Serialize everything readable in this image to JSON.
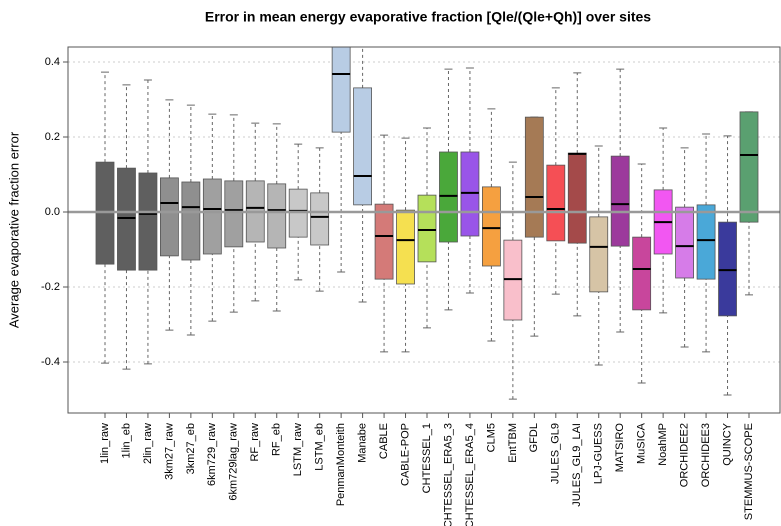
{
  "chart_data": {
    "type": "box",
    "title": "Error in mean energy evaporative fraction [Qle/(Qle+Qh)] over sites",
    "y_label": "Average evaporative fraction error",
    "categories": [
      "1lin_raw",
      "1lin_eb",
      "2lin_raw",
      "3km27_raw",
      "3km27_eb",
      "6km729_raw",
      "6km729lag_raw",
      "RF_raw",
      "RF_eb",
      "LSTM_raw",
      "LSTM_eb",
      "PenmanMonteith",
      "Manabe",
      "CABLE",
      "CABLE-POP",
      "CHTESSEL_1",
      "CHTESSEL_ERA5_3",
      "CHTESSEL_ERA5_4",
      "CLM5",
      "EntTBM",
      "GFDL",
      "JULES_GL9",
      "JULES_GL9_LAI",
      "LPJ-GUESS",
      "MATSIRO",
      "MuSICA",
      "NoahMP",
      "ORCHIDEE2",
      "ORCHIDEE3",
      "QUINCY",
      "STEMMUS-SCOPE"
    ],
    "boxes": [
      {
        "low": -0.403,
        "q1": -0.139,
        "median": 0.0,
        "q3": 0.133,
        "high": 0.373,
        "color": "#5f5f5f"
      },
      {
        "low": -0.419,
        "q1": -0.155,
        "median": -0.016,
        "q3": 0.117,
        "high": 0.339,
        "color": "#5f5f5f"
      },
      {
        "low": -0.405,
        "q1": -0.155,
        "median": -0.005,
        "q3": 0.104,
        "high": 0.352,
        "color": "#5f5f5f"
      },
      {
        "low": -0.315,
        "q1": -0.117,
        "median": 0.024,
        "q3": 0.091,
        "high": 0.299,
        "color": "#8f8f8f"
      },
      {
        "low": -0.328,
        "q1": -0.128,
        "median": 0.013,
        "q3": 0.08,
        "high": 0.285,
        "color": "#8f8f8f"
      },
      {
        "low": -0.291,
        "q1": -0.112,
        "median": 0.008,
        "q3": 0.088,
        "high": 0.261,
        "color": "#a0a0a0"
      },
      {
        "low": -0.267,
        "q1": -0.093,
        "median": 0.005,
        "q3": 0.083,
        "high": 0.259,
        "color": "#a0a0a0"
      },
      {
        "low": -0.237,
        "q1": -0.08,
        "median": 0.011,
        "q3": 0.083,
        "high": 0.237,
        "color": "#b5b5b5"
      },
      {
        "low": -0.264,
        "q1": -0.096,
        "median": 0.005,
        "q3": 0.075,
        "high": 0.235,
        "color": "#b5b5b5"
      },
      {
        "low": -0.181,
        "q1": -0.067,
        "median": 0.003,
        "q3": 0.061,
        "high": 0.181,
        "color": "#c8c8c8"
      },
      {
        "low": -0.211,
        "q1": -0.088,
        "median": -0.013,
        "q3": 0.051,
        "high": 0.171,
        "color": "#c8c8c8"
      },
      {
        "low": -0.16,
        "q1": 0.213,
        "median": 0.368,
        "q3": 0.46,
        "high": 0.55,
        "color": "#b8cce4"
      },
      {
        "low": -0.24,
        "q1": 0.019,
        "median": 0.096,
        "q3": 0.331,
        "high": 0.5,
        "color": "#b8cce4"
      },
      {
        "low": -0.373,
        "q1": -0.179,
        "median": -0.064,
        "q3": 0.021,
        "high": 0.205,
        "color": "#d47a78"
      },
      {
        "low": -0.373,
        "q1": -0.192,
        "median": -0.075,
        "q3": 0.005,
        "high": 0.197,
        "color": "#f5e050"
      },
      {
        "low": -0.309,
        "q1": -0.133,
        "median": -0.048,
        "q3": 0.045,
        "high": 0.224,
        "color": "#b5e05a"
      },
      {
        "low": -0.261,
        "q1": -0.08,
        "median": 0.043,
        "q3": 0.16,
        "high": 0.381,
        "color": "#4aa83a"
      },
      {
        "low": -0.216,
        "q1": -0.064,
        "median": 0.051,
        "q3": 0.16,
        "high": 0.384,
        "color": "#9955e8"
      },
      {
        "low": -0.344,
        "q1": -0.144,
        "median": -0.043,
        "q3": 0.067,
        "high": 0.275,
        "color": "#f5a040"
      },
      {
        "low": -0.499,
        "q1": -0.288,
        "median": -0.179,
        "q3": -0.075,
        "high": 0.133,
        "color": "#f9bfcb"
      },
      {
        "low": -0.331,
        "q1": -0.067,
        "median": 0.04,
        "q3": 0.253,
        "high": 0.253,
        "color": "#a57a55"
      },
      {
        "low": -0.219,
        "q1": -0.077,
        "median": 0.008,
        "q3": 0.125,
        "high": 0.331,
        "color": "#f54f55"
      },
      {
        "low": -0.277,
        "q1": -0.083,
        "median": 0.155,
        "q3": 0.157,
        "high": 0.371,
        "color": "#a44a4a"
      },
      {
        "low": -0.408,
        "q1": -0.213,
        "median": -0.093,
        "q3": -0.013,
        "high": 0.176,
        "color": "#d6c4a6"
      },
      {
        "low": -0.32,
        "q1": -0.091,
        "median": 0.021,
        "q3": 0.149,
        "high": 0.381,
        "color": "#9c3a9c"
      },
      {
        "low": -0.456,
        "q1": -0.261,
        "median": -0.152,
        "q3": -0.067,
        "high": 0.128,
        "color": "#c8469c"
      },
      {
        "low": -0.269,
        "q1": -0.112,
        "median": -0.027,
        "q3": 0.059,
        "high": 0.224,
        "color": "#f257f2"
      },
      {
        "low": -0.36,
        "q1": -0.176,
        "median": -0.091,
        "q3": 0.013,
        "high": 0.171,
        "color": "#d67ce8"
      },
      {
        "low": -0.373,
        "q1": -0.179,
        "median": -0.075,
        "q3": 0.019,
        "high": 0.208,
        "color": "#4aa8d8"
      },
      {
        "low": -0.488,
        "q1": -0.277,
        "median": -0.155,
        "q3": -0.027,
        "high": 0.203,
        "color": "#3a3a9c"
      },
      {
        "low": -0.221,
        "q1": -0.027,
        "median": 0.152,
        "q3": 0.267,
        "high": 0.267,
        "color": "#5aa070"
      }
    ],
    "ylim": [
      -0.536,
      0.44
    ],
    "yticks": [
      -0.4,
      -0.2,
      {
        "value": 0,
        "label": "0.0"
      },
      0.2,
      0.4
    ],
    "reference_line": 0,
    "grid": true
  }
}
